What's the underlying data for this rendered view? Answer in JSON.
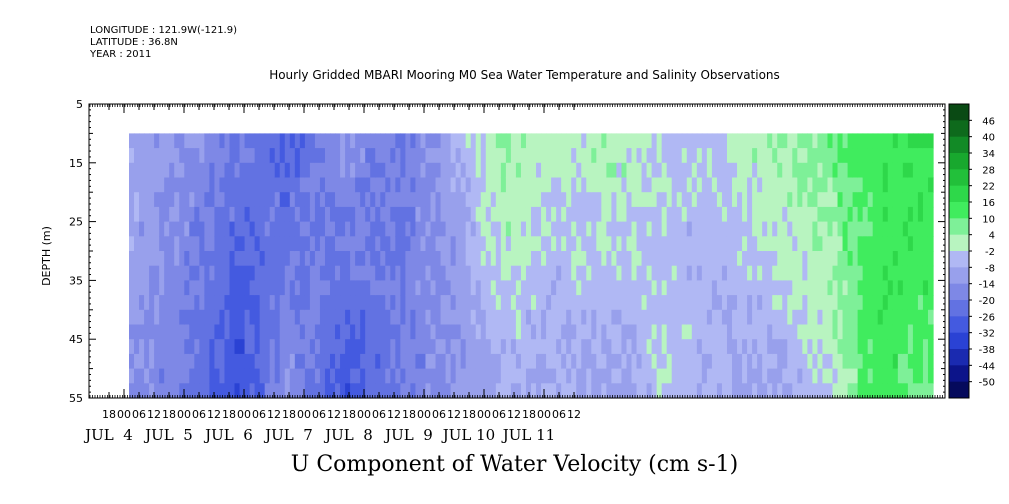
{
  "header": {
    "longitude": "LONGITUDE : 121.9W(-121.9)",
    "latitude": "LATITUDE : 36.8N",
    "year": "YEAR : 2011"
  },
  "chart_data": {
    "type": "heatmap",
    "title": "Hourly Gridded MBARI Mooring M0 Sea Water Temperature and Salinity Observations",
    "xlabel": "U Component of Water Velocity (cm s-1)",
    "ylabel": "DEPTH (m)",
    "ylim": [
      5,
      55
    ],
    "yticks": [
      "5",
      "15",
      "25",
      "35",
      "45",
      "55"
    ],
    "hour_ticks": [
      "18",
      "00",
      "06",
      "12",
      "18",
      "00",
      "06",
      "12",
      "18",
      "00",
      "06",
      "12",
      "18",
      "00",
      "06",
      "12",
      "18",
      "00",
      "06",
      "12",
      "18",
      "00",
      "06",
      "12",
      "18",
      "00",
      "06",
      "12",
      "18",
      "00",
      "06",
      "12"
    ],
    "day_labels": [
      "JUL  4",
      "JUL  5",
      "JUL  6",
      "JUL  7",
      "JUL  8",
      "JUL  9",
      "JUL 10",
      "JUL 11"
    ],
    "data_depth_range": [
      10,
      55
    ],
    "colorbar_levels": [
      "46",
      "40",
      "34",
      "28",
      "22",
      "16",
      "10",
      "4",
      "-2",
      "-8",
      "-14",
      "-20",
      "-26",
      "-32",
      "-38",
      "-44",
      "-50"
    ],
    "colorbar_colors": [
      "#0a4a14",
      "#0e6a1c",
      "#128a26",
      "#18a82e",
      "#22c03a",
      "#2ed84a",
      "#40ec5e",
      "#7ef098",
      "#b8f4c0",
      "#b0b8f4",
      "#98a0ec",
      "#7e88e6",
      "#6272e2",
      "#445ae0",
      "#2a42d4",
      "#1a2ab0",
      "#0c148a",
      "#050a5c"
    ],
    "series": [
      {
        "x": [
          "Jul 4 00",
          "Jul 4 12",
          "Jul 5 00",
          "Jul 5 12",
          "Jul 6 00",
          "Jul 6 12",
          "Jul 7 00",
          "Jul 7 12",
          "Jul 8 00",
          "Jul 8 12",
          "Jul 9 00",
          "Jul 9 12",
          "Jul 10 00",
          "Jul 10 12",
          "Jul 11 00",
          "Jul 11 12"
        ],
        "surface_u": [
          -8,
          -14,
          -20,
          -26,
          -14,
          -20,
          -10,
          6,
          -2,
          4,
          -4,
          -4,
          4,
          8,
          14,
          16
        ],
        "deep_u": [
          -14,
          -20,
          -32,
          -14,
          -30,
          -20,
          -14,
          -8,
          -8,
          -10,
          -4,
          -8,
          -10,
          -4,
          14,
          10
        ]
      }
    ]
  }
}
